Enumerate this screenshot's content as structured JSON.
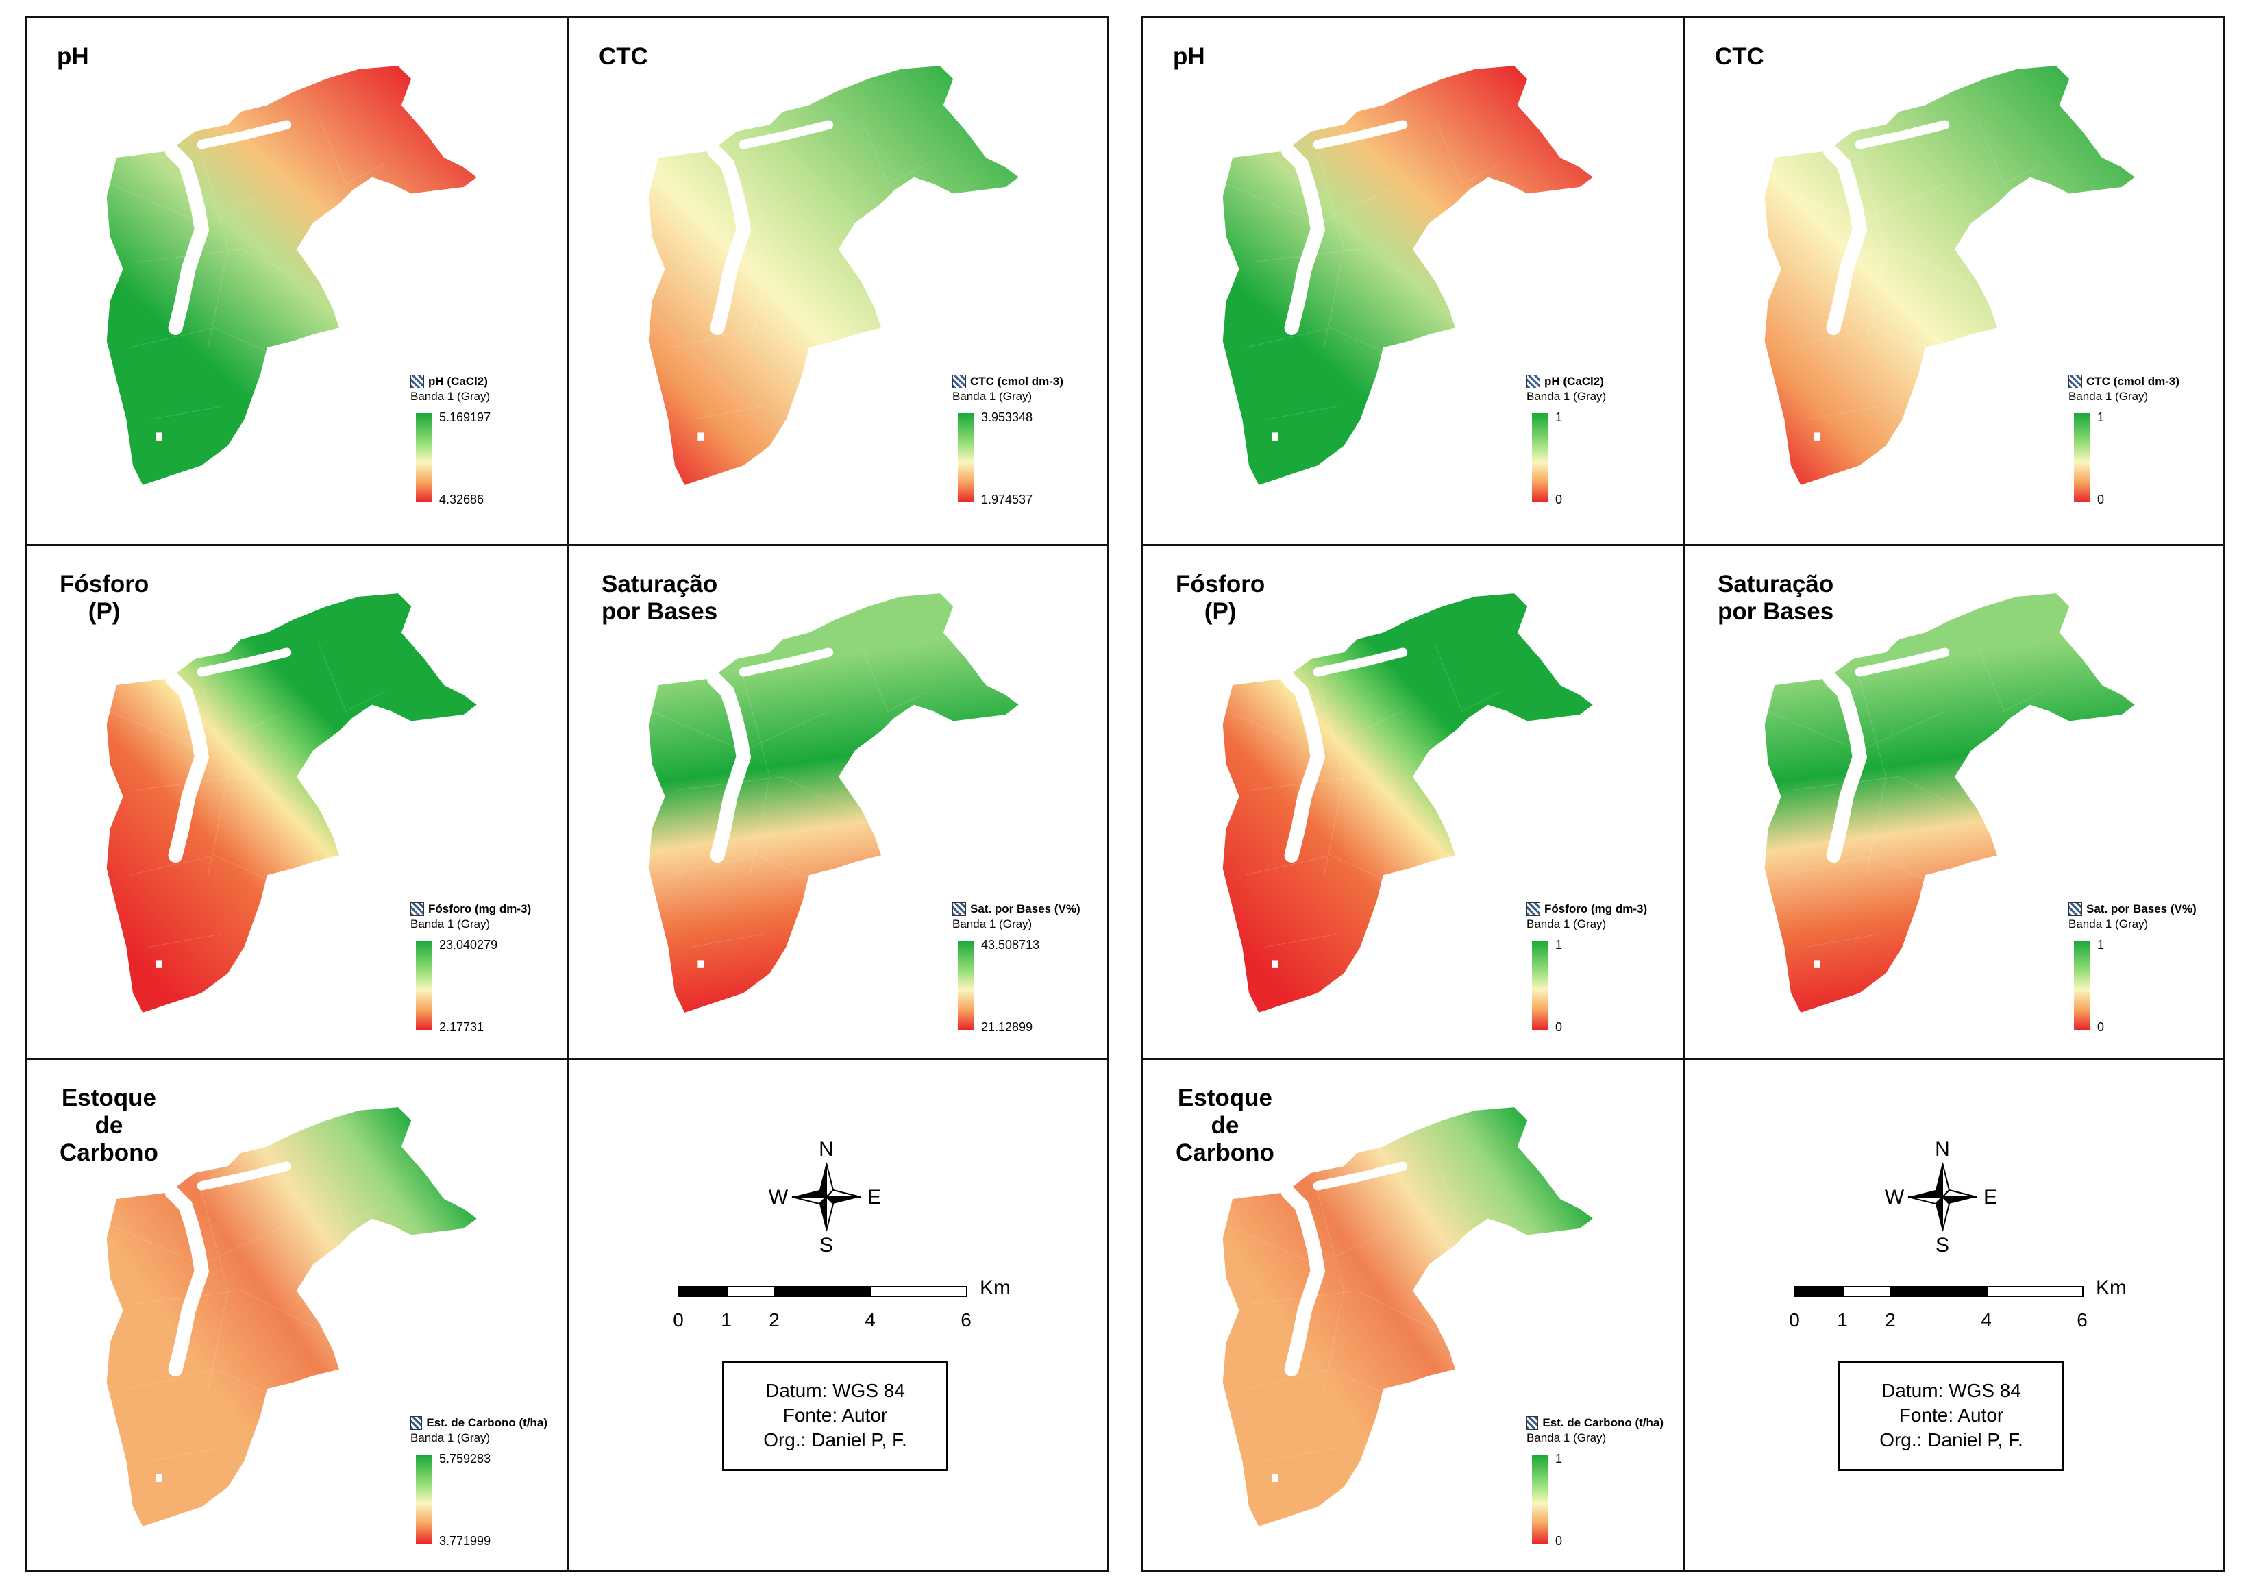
{
  "colors": {
    "high": "#1aa83a",
    "mid": "#fbf6c0",
    "low": "#e8262a"
  },
  "boards": [
    {
      "id": "original",
      "panels": [
        {
          "key": "ph",
          "title": "pH",
          "legend_title": "pH (CaCl2)",
          "legend_band": "Banda 1 (Gray)",
          "max": "5.169197",
          "min": "4.32686"
        },
        {
          "key": "ctc",
          "title": "CTC",
          "legend_title": "CTC (cmol dm-3)",
          "legend_band": "Banda 1 (Gray)",
          "max": "3.953348",
          "min": "1.974537"
        },
        {
          "key": "fosforo",
          "title": "Fósforo\n(P)",
          "legend_title": "Fósforo (mg dm-3)",
          "legend_band": "Banda 1 (Gray)",
          "max": "23.040279",
          "min": "2.17731"
        },
        {
          "key": "saturacao",
          "title": "Saturação\npor Bases",
          "legend_title": "Sat. por Bases (V%)",
          "legend_band": "Banda 1 (Gray)",
          "max": "43.508713",
          "min": "21.12899"
        },
        {
          "key": "carbono",
          "title": "Estoque\nde\nCarbono",
          "legend_title": "Est. de Carbono (t/ha)",
          "legend_band": "Banda 1 (Gray)",
          "max": "5.759283",
          "min": "3.771999"
        }
      ],
      "info": {
        "datum": "Datum: WGS 84",
        "fonte": "Fonte: Autor",
        "org": "Org.: Daniel P, F."
      }
    },
    {
      "id": "normalized",
      "panels": [
        {
          "key": "ph",
          "title": "pH",
          "legend_title": "pH (CaCl2)",
          "legend_band": "Banda 1 (Gray)",
          "max": "1",
          "min": "0"
        },
        {
          "key": "ctc",
          "title": "CTC",
          "legend_title": "CTC (cmol dm-3)",
          "legend_band": "Banda 1 (Gray)",
          "max": "1",
          "min": "0"
        },
        {
          "key": "fosforo",
          "title": "Fósforo\n(P)",
          "legend_title": "Fósforo (mg dm-3)",
          "legend_band": "Banda 1 (Gray)",
          "max": "1",
          "min": "0"
        },
        {
          "key": "saturacao",
          "title": "Saturação\npor Bases",
          "legend_title": "Sat. por Bases (V%)",
          "legend_band": "Banda 1 (Gray)",
          "max": "1",
          "min": "0"
        },
        {
          "key": "carbono",
          "title": "Estoque\nde\nCarbono",
          "legend_title": "Est. de Carbono (t/ha)",
          "legend_band": "Banda 1 (Gray)",
          "max": "1",
          "min": "0"
        }
      ],
      "info": {
        "datum": "Datum: WGS 84",
        "fonte": "Fonte: Autor",
        "org": "Org.: Daniel P, F."
      }
    }
  ],
  "compass": {
    "n": "N",
    "s": "S",
    "e": "E",
    "w": "W"
  },
  "scale": {
    "ticks": [
      "0",
      "1",
      "2",
      "4",
      "6"
    ],
    "unit": "Km"
  }
}
